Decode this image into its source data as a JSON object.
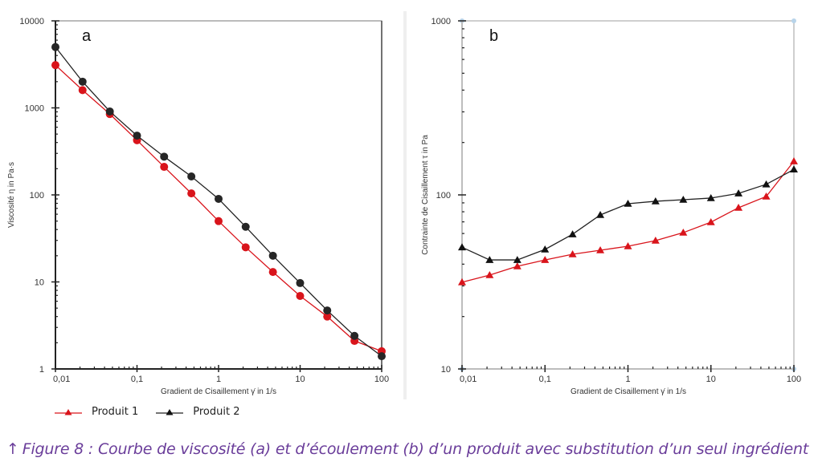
{
  "chart_data": [
    {
      "type": "line",
      "panel_label": "a",
      "title": "",
      "xlabel": "Gradient de Cisaillement γ̇ in 1/s",
      "ylabel": "Viscosité η in Pa·s",
      "xscale": "log",
      "yscale": "log",
      "xlim": [
        0.01,
        100
      ],
      "ylim": [
        1,
        10000
      ],
      "xticks": [
        0.01,
        0.1,
        1,
        10,
        100
      ],
      "xtick_labels": [
        "0,01",
        "0,1",
        "1",
        "10",
        "100"
      ],
      "yticks": [
        1,
        10,
        100,
        1000,
        10000
      ],
      "ytick_labels": [
        "1",
        "10",
        "100",
        "1000",
        "10000"
      ],
      "marker": "circle",
      "x": [
        0.01,
        0.0215,
        0.0464,
        0.1,
        0.215,
        0.464,
        1,
        2.15,
        4.64,
        10,
        21.5,
        46.4,
        100
      ],
      "series": [
        {
          "name": "Produit 1",
          "color": "#d9141b",
          "values": [
            3100,
            1600,
            850,
            425,
            210,
            104,
            50,
            25,
            13,
            6.9,
            4.0,
            2.1,
            1.6
          ]
        },
        {
          "name": "Produit 2",
          "color": "#222222",
          "values": [
            5000,
            2000,
            910,
            480,
            275,
            163,
            90,
            43,
            20,
            9.7,
            4.7,
            2.4,
            1.4
          ]
        }
      ]
    },
    {
      "type": "line",
      "panel_label": "b",
      "title": "",
      "xlabel": "Gradient de Cisaillement γ̇ in 1/s",
      "ylabel": "Contrainte de Cisaillement τ in Pa",
      "xscale": "log",
      "yscale": "log",
      "xlim": [
        0.01,
        100
      ],
      "ylim": [
        10,
        1000
      ],
      "xticks": [
        0.01,
        0.1,
        1,
        10,
        100
      ],
      "xtick_labels": [
        "0,01",
        "0,1",
        "1",
        "10",
        "100"
      ],
      "yticks": [
        10,
        100,
        1000
      ],
      "ytick_labels": [
        "10",
        "100",
        "1000"
      ],
      "marker": "triangle",
      "x": [
        0.01,
        0.0215,
        0.0464,
        0.1,
        0.215,
        0.464,
        1,
        2.15,
        4.64,
        10,
        21.5,
        46.4,
        100
      ],
      "series": [
        {
          "name": "Produit 1",
          "color": "#d9141b",
          "values": [
            31.5,
            34.6,
            38.9,
            42.3,
            45.6,
            48.1,
            50.7,
            54.6,
            60.7,
            69.7,
            84.4,
            97.9,
            156
          ]
        },
        {
          "name": "Produit 2",
          "color": "#222222",
          "values": [
            50,
            42.3,
            42.3,
            48.6,
            59.4,
            76.7,
            89,
            91.9,
            93.8,
            95.9,
            102,
            115,
            140
          ]
        }
      ]
    }
  ],
  "legend": {
    "placement": "bottom-left",
    "items": [
      {
        "label": "Produit 1",
        "color": "#d9141b"
      },
      {
        "label": "Produit 2",
        "color": "#222222"
      }
    ]
  },
  "caption": {
    "arrow": "↑",
    "text": "Figure 8 : Courbe de viscosité (a) et d’écoulement (b) d’un produit avec substitution d’un seul ingrédient",
    "color": "#6a3d9a"
  }
}
